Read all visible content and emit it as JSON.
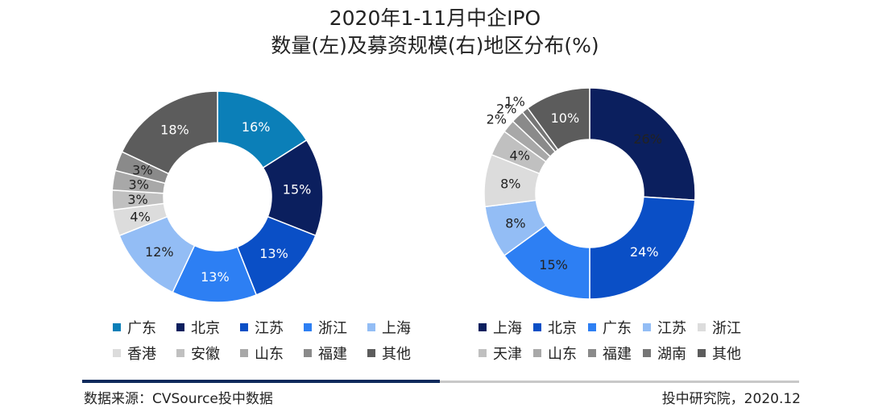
{
  "title": {
    "line1": "2020年1-11月中企IPO",
    "line2": "数量(左)及募资规模(右)地区分布(%)"
  },
  "chart_data": [
    {
      "type": "pie",
      "name": "数量",
      "categories": [
        "广东",
        "北京",
        "江苏",
        "浙江",
        "上海",
        "香港",
        "安徽",
        "山东",
        "福建",
        "其他"
      ],
      "values": [
        16,
        15,
        13,
        13,
        12,
        4,
        3,
        3,
        3,
        18
      ],
      "labels": [
        "16%",
        "15%",
        "13%",
        "13%",
        "12%",
        "4%",
        "3%",
        "3%",
        "3%",
        "18%"
      ],
      "colors": [
        "#0b7fb8",
        "#0b1f5e",
        "#0a4fc6",
        "#2d7ff3",
        "#93bdf5",
        "#dcdcdc",
        "#c0c0c0",
        "#a8a8a8",
        "#8a8a8a",
        "#5c5c5c"
      ],
      "label_colors": [
        "#ffffff",
        "#ffffff",
        "#ffffff",
        "#ffffff",
        "#222222",
        "#222222",
        "#222222",
        "#222222",
        "#222222",
        "#ffffff"
      ]
    },
    {
      "type": "pie",
      "name": "募资规模",
      "categories": [
        "上海",
        "北京",
        "广东",
        "江苏",
        "浙江",
        "天津",
        "山东",
        "福建",
        "湖南",
        "其他"
      ],
      "values": [
        26,
        24,
        15,
        8,
        8,
        4,
        2,
        2,
        1,
        10
      ],
      "labels": [
        "26%",
        "24%",
        "15%",
        "8%",
        "8%",
        "4%",
        "2%",
        "2%",
        "1%",
        "10%"
      ],
      "colors": [
        "#0b1f5e",
        "#0a4fc6",
        "#2d7ff3",
        "#93bdf5",
        "#dcdcdc",
        "#c0c0c0",
        "#a8a8a8",
        "#8a8a8a",
        "#767676",
        "#5c5c5c"
      ],
      "label_colors": [
        "#222222",
        "#ffffff",
        "#222222",
        "#222222",
        "#222222",
        "#222222",
        "#222222",
        "#222222",
        "#222222",
        "#ffffff"
      ]
    }
  ],
  "footer": {
    "source": "数据来源：CVSource投中数据",
    "credit": "投中研究院，2020.12"
  }
}
